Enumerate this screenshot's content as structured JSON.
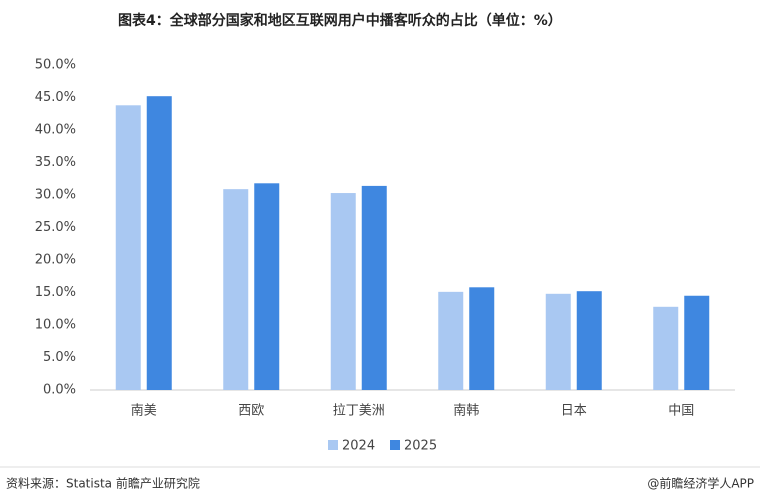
{
  "chart_data": {
    "type": "bar",
    "title": "图表4：全球部分国家和地区互联网用户中播客听众的占比（单位：%）",
    "categories": [
      "南美",
      "西欧",
      "拉丁美洲",
      "南韩",
      "日本",
      "中国"
    ],
    "series": [
      {
        "name": "2024",
        "color": "#a9c8f2",
        "values": [
          43.8,
          30.9,
          30.3,
          15.1,
          14.8,
          12.8
        ]
      },
      {
        "name": "2025",
        "color": "#3f87e0",
        "values": [
          45.2,
          31.8,
          31.4,
          15.8,
          15.2,
          14.5
        ]
      }
    ],
    "ylim": [
      0,
      50
    ],
    "yticks": [
      {
        "value": 0,
        "label": "0.0%"
      },
      {
        "value": 5,
        "label": "5.0%"
      },
      {
        "value": 10,
        "label": "10.0%"
      },
      {
        "value": 15,
        "label": "15.0%"
      },
      {
        "value": 20,
        "label": "20.0%"
      },
      {
        "value": 25,
        "label": "25.0%"
      },
      {
        "value": 30,
        "label": "30.0%"
      },
      {
        "value": 35,
        "label": "35.0%"
      },
      {
        "value": 40,
        "label": "40.0%"
      },
      {
        "value": 45,
        "label": "45.0%"
      },
      {
        "value": 50,
        "label": "50.0%"
      }
    ],
    "grid": false,
    "legend": "bottom",
    "source": "资料来源：Statista  前瞻产业研究院",
    "credit": "@前瞻经济学人APP"
  }
}
